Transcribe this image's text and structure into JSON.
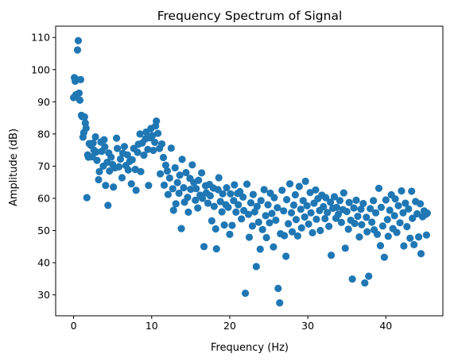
{
  "chart_data": {
    "type": "scatter",
    "title": "Frequency Spectrum of Signal",
    "xlabel": "Frequency (Hz)",
    "ylabel": "Amplitude (dB)",
    "xlim": [
      -2.3,
      47.3
    ],
    "ylim": [
      23.5,
      113.5
    ],
    "xticks": [
      0,
      10,
      20,
      30,
      40
    ],
    "yticks": [
      30,
      40,
      50,
      60,
      70,
      80,
      90,
      100,
      110
    ],
    "grid": false,
    "marker_color": "#1f77b4",
    "series": [
      {
        "points": [
          [
            0.0,
            91.3
          ],
          [
            0.1,
            97.5
          ],
          [
            0.2,
            96.4
          ],
          [
            0.3,
            92.2
          ],
          [
            0.4,
            96.9
          ],
          [
            0.5,
            106.1
          ],
          [
            0.6,
            109.0
          ],
          [
            0.7,
            92.7
          ],
          [
            0.8,
            90.5
          ],
          [
            0.9,
            96.9
          ],
          [
            1.0,
            85.8
          ],
          [
            1.1,
            85.4
          ],
          [
            1.2,
            79.0
          ],
          [
            1.3,
            80.4
          ],
          [
            1.4,
            85.3
          ],
          [
            1.5,
            83.4
          ],
          [
            1.6,
            81.8
          ],
          [
            1.7,
            60.2
          ],
          [
            1.8,
            73.5
          ],
          [
            1.9,
            72.8
          ],
          [
            2.0,
            77.0
          ],
          [
            2.2,
            76.5
          ],
          [
            2.4,
            72.9
          ],
          [
            2.5,
            77.2
          ],
          [
            2.6,
            75.0
          ],
          [
            2.8,
            79.1
          ],
          [
            2.9,
            74.4
          ],
          [
            3.0,
            71.8
          ],
          [
            3.2,
            65.8
          ],
          [
            3.3,
            68.3
          ],
          [
            3.5,
            77.5
          ],
          [
            3.6,
            74.6
          ],
          [
            3.8,
            70.0
          ],
          [
            3.9,
            78.2
          ],
          [
            4.0,
            76.0
          ],
          [
            4.1,
            64.0
          ],
          [
            4.3,
            71.2
          ],
          [
            4.4,
            57.8
          ],
          [
            4.5,
            74.1
          ],
          [
            4.6,
            68.5
          ],
          [
            4.8,
            72.8
          ],
          [
            5.0,
            70.5
          ],
          [
            5.1,
            63.5
          ],
          [
            5.3,
            69.5
          ],
          [
            5.5,
            78.7
          ],
          [
            5.6,
            75.5
          ],
          [
            5.8,
            69.8
          ],
          [
            6.0,
            72.2
          ],
          [
            6.2,
            66.4
          ],
          [
            6.3,
            74.0
          ],
          [
            6.5,
            76.1
          ],
          [
            6.7,
            70.2
          ],
          [
            6.9,
            73.5
          ],
          [
            7.0,
            68.8
          ],
          [
            7.2,
            71.5
          ],
          [
            7.4,
            64.5
          ],
          [
            7.5,
            72.0
          ],
          [
            7.7,
            75.5
          ],
          [
            7.9,
            69.0
          ],
          [
            8.0,
            62.5
          ],
          [
            8.2,
            74.3
          ],
          [
            8.3,
            76.8
          ],
          [
            8.5,
            80.0
          ],
          [
            8.6,
            68.3
          ],
          [
            8.8,
            77.2
          ],
          [
            9.0,
            73.4
          ],
          [
            9.2,
            78.5
          ],
          [
            9.3,
            80.6
          ],
          [
            9.5,
            75.2
          ],
          [
            9.6,
            64.0
          ],
          [
            9.8,
            78.8
          ],
          [
            9.9,
            81.7
          ],
          [
            10.1,
            79.5
          ],
          [
            10.2,
            74.9
          ],
          [
            10.4,
            77.4
          ],
          [
            10.5,
            82.5
          ],
          [
            10.6,
            84.0
          ],
          [
            10.8,
            80.2
          ],
          [
            11.0,
            75.5
          ],
          [
            11.1,
            67.6
          ],
          [
            11.3,
            76.9
          ],
          [
            11.5,
            72.7
          ],
          [
            11.6,
            64.1
          ],
          [
            11.8,
            70.3
          ],
          [
            12.0,
            68.5
          ],
          [
            12.1,
            61.2
          ],
          [
            12.3,
            66.3
          ],
          [
            12.5,
            75.6
          ],
          [
            12.7,
            63.0
          ],
          [
            12.8,
            56.3
          ],
          [
            13.0,
            69.5
          ],
          [
            13.1,
            58.3
          ],
          [
            13.3,
            64.9
          ],
          [
            13.5,
            61.6
          ],
          [
            13.6,
            67.2
          ],
          [
            13.8,
            50.6
          ],
          [
            13.9,
            72.1
          ],
          [
            14.1,
            63.3
          ],
          [
            14.2,
            58.8
          ],
          [
            14.4,
            68.0
          ],
          [
            14.6,
            60.3
          ],
          [
            14.7,
            55.7
          ],
          [
            14.9,
            66.2
          ],
          [
            15.0,
            62.8
          ],
          [
            15.2,
            70.4
          ],
          [
            15.4,
            64.9
          ],
          [
            15.6,
            59.4
          ],
          [
            15.7,
            63.0
          ],
          [
            15.9,
            57.0
          ],
          [
            16.0,
            65.6
          ],
          [
            16.2,
            61.0
          ],
          [
            16.4,
            67.9
          ],
          [
            16.5,
            60.0
          ],
          [
            16.7,
            45.0
          ],
          [
            16.9,
            63.9
          ],
          [
            17.0,
            61.7
          ],
          [
            17.2,
            58.5
          ],
          [
            17.4,
            64.3
          ],
          [
            17.5,
            60.8
          ],
          [
            17.7,
            53.0
          ],
          [
            17.9,
            63.2
          ],
          [
            18.0,
            57.5
          ],
          [
            18.2,
            50.5
          ],
          [
            18.3,
            44.3
          ],
          [
            18.5,
            62.7
          ],
          [
            18.6,
            66.4
          ],
          [
            18.8,
            59.0
          ],
          [
            19.0,
            55.8
          ],
          [
            19.1,
            61.4
          ],
          [
            19.3,
            51.7
          ],
          [
            19.5,
            58.0
          ],
          [
            19.6,
            63.3
          ],
          [
            19.8,
            57.2
          ],
          [
            20.0,
            48.8
          ],
          [
            20.1,
            61.4
          ],
          [
            20.3,
            51.6
          ],
          [
            20.5,
            59.3
          ],
          [
            20.6,
            64.2
          ],
          [
            20.8,
            55.7
          ],
          [
            21.0,
            61.5
          ],
          [
            21.1,
            58.0
          ],
          [
            21.3,
            62.1
          ],
          [
            21.5,
            53.6
          ],
          [
            21.7,
            60.4
          ],
          [
            21.8,
            56.2
          ],
          [
            22.0,
            30.5
          ],
          [
            22.2,
            64.4
          ],
          [
            22.4,
            55.0
          ],
          [
            22.5,
            47.9
          ],
          [
            22.7,
            58.6
          ],
          [
            22.9,
            51.4
          ],
          [
            23.0,
            61.2
          ],
          [
            23.2,
            55.8
          ],
          [
            23.4,
            38.8
          ],
          [
            23.5,
            57.5
          ],
          [
            23.7,
            52.6
          ],
          [
            23.9,
            44.2
          ],
          [
            24.0,
            59.3
          ],
          [
            24.2,
            50.3
          ],
          [
            24.4,
            62.7
          ],
          [
            24.6,
            54.6
          ],
          [
            24.7,
            47.8
          ],
          [
            24.9,
            58.0
          ],
          [
            25.1,
            52.4
          ],
          [
            25.2,
            61.6
          ],
          [
            25.4,
            55.3
          ],
          [
            25.6,
            44.9
          ],
          [
            25.7,
            60.2
          ],
          [
            25.9,
            53.2
          ],
          [
            26.1,
            57.1
          ],
          [
            26.2,
            32.0
          ],
          [
            26.4,
            27.5
          ],
          [
            26.5,
            49.0
          ],
          [
            26.7,
            62.5
          ],
          [
            26.9,
            56.1
          ],
          [
            27.0,
            48.4
          ],
          [
            27.2,
            42.0
          ],
          [
            27.3,
            59.6
          ],
          [
            27.5,
            52.1
          ],
          [
            27.7,
            64.5
          ],
          [
            27.9,
            55.5
          ],
          [
            28.0,
            49.6
          ],
          [
            28.2,
            57.9
          ],
          [
            28.4,
            61.1
          ],
          [
            28.5,
            53.4
          ],
          [
            28.7,
            48.3
          ],
          [
            28.9,
            63.7
          ],
          [
            29.1,
            56.6
          ],
          [
            29.2,
            50.8
          ],
          [
            29.4,
            59.3
          ],
          [
            29.6,
            54.2
          ],
          [
            29.7,
            65.3
          ],
          [
            29.9,
            57.7
          ],
          [
            30.1,
            52.0
          ],
          [
            30.3,
            61.8
          ],
          [
            30.4,
            55.5
          ],
          [
            30.6,
            49.3
          ],
          [
            30.8,
            58.5
          ],
          [
            31.0,
            62.6
          ],
          [
            31.1,
            53.5
          ],
          [
            31.3,
            59.9
          ],
          [
            31.5,
            56.2
          ],
          [
            31.6,
            50.0
          ],
          [
            31.8,
            61.0
          ],
          [
            32.0,
            57.4
          ],
          [
            32.2,
            53.7
          ],
          [
            32.3,
            60.2
          ],
          [
            32.5,
            55.6
          ],
          [
            32.7,
            51.3
          ],
          [
            32.9,
            58.8
          ],
          [
            33.0,
            42.3
          ],
          [
            33.2,
            56.9
          ],
          [
            33.4,
            60.5
          ],
          [
            33.6,
            53.8
          ],
          [
            33.7,
            57.2
          ],
          [
            33.9,
            55.0
          ],
          [
            34.1,
            59.3
          ],
          [
            34.3,
            52.5
          ],
          [
            34.5,
            56.5
          ],
          [
            34.6,
            61.7
          ],
          [
            34.8,
            44.5
          ],
          [
            35.0,
            55.9
          ],
          [
            35.2,
            50.4
          ],
          [
            35.3,
            58.7
          ],
          [
            35.5,
            53.2
          ],
          [
            35.7,
            34.9
          ],
          [
            35.9,
            57.0
          ],
          [
            36.0,
            52.2
          ],
          [
            36.2,
            59.4
          ],
          [
            36.4,
            54.4
          ],
          [
            36.6,
            48.0
          ],
          [
            36.8,
            56.6
          ],
          [
            36.9,
            51.8
          ],
          [
            37.1,
            58.4
          ],
          [
            37.3,
            33.7
          ],
          [
            37.5,
            54.1
          ],
          [
            37.6,
            49.6
          ],
          [
            37.8,
            35.8
          ],
          [
            38.0,
            56.8
          ],
          [
            38.2,
            52.6
          ],
          [
            38.4,
            59.3
          ],
          [
            38.5,
            50.2
          ],
          [
            38.7,
            55.5
          ],
          [
            38.9,
            48.8
          ],
          [
            39.1,
            63.1
          ],
          [
            39.3,
            45.3
          ],
          [
            39.4,
            57.2
          ],
          [
            39.6,
            51.4
          ],
          [
            39.8,
            41.7
          ],
          [
            40.0,
            59.5
          ],
          [
            40.2,
            53.4
          ],
          [
            40.3,
            48.2
          ],
          [
            40.5,
            56.3
          ],
          [
            40.7,
            61.1
          ],
          [
            40.9,
            50.6
          ],
          [
            41.1,
            54.6
          ],
          [
            41.2,
            59.8
          ],
          [
            41.4,
            49.4
          ],
          [
            41.6,
            57.7
          ],
          [
            41.8,
            52.4
          ],
          [
            42.0,
            62.3
          ],
          [
            42.2,
            55.5
          ],
          [
            42.3,
            45.2
          ],
          [
            42.5,
            58.5
          ],
          [
            42.7,
            51.2
          ],
          [
            42.9,
            56.7
          ],
          [
            43.1,
            47.6
          ],
          [
            43.3,
            62.2
          ],
          [
            43.4,
            53.8
          ],
          [
            43.6,
            45.6
          ],
          [
            43.8,
            59.0
          ],
          [
            44.0,
            55.2
          ],
          [
            44.2,
            48.0
          ],
          [
            44.4,
            58.3
          ],
          [
            44.5,
            42.8
          ],
          [
            44.7,
            54.3
          ],
          [
            44.9,
            56.1
          ],
          [
            45.1,
            55.0
          ],
          [
            45.2,
            48.6
          ],
          [
            45.3,
            55.4
          ]
        ]
      }
    ]
  }
}
